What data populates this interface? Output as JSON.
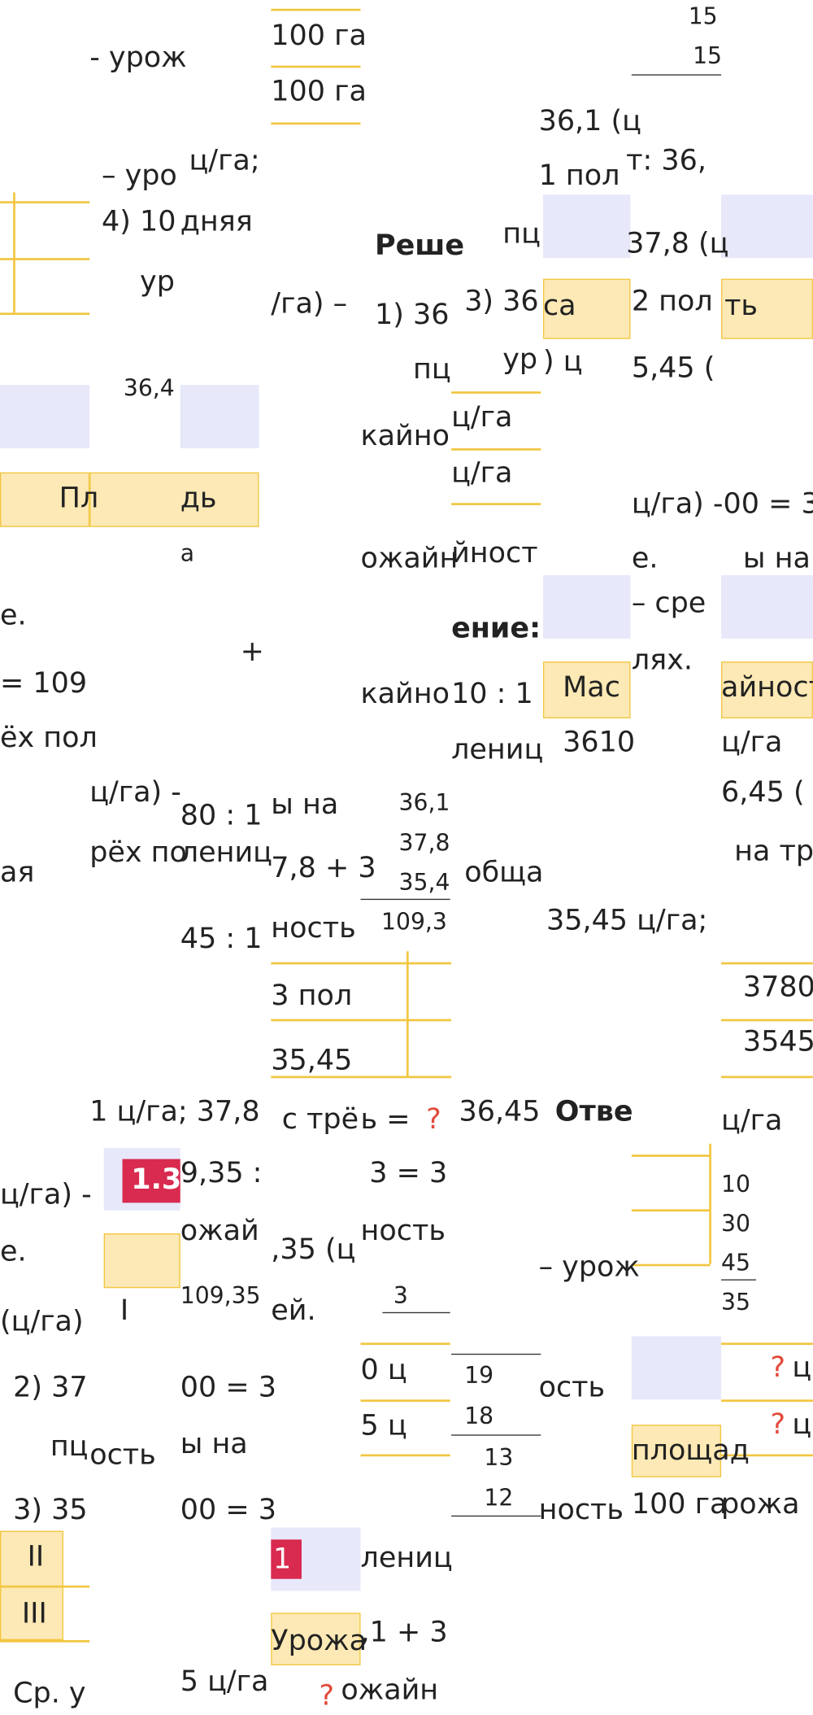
{
  "fragments": [
    "- урож",
    "100 га",
    "100 га",
    "15",
    "15",
    "36,1 (ц",
    "ц/га;",
    "– уро",
    "1 пол",
    "т: 36,",
    "4) 10",
    "дняя",
    "Реше",
    "пц",
    "37,8 (ц",
    "ур",
    "/га) –",
    "1) 36",
    "3) 36",
    "са",
    "2 пол",
    "ть",
    "ур",
    ") ц",
    "5,45 (",
    "пц",
    "36,4",
    "ц/га",
    "кайно",
    "ц/га",
    "Пл",
    "дь",
    "а",
    "ожайн",
    "йност",
    "ц/га) -00 = 3",
    "е.",
    "ы на",
    "е.",
    "ение:",
    "– сре",
    "+",
    "лях.",
    "= 109",
    "кайно",
    "10 : 1",
    "Мас",
    "айност",
    "ёх пол",
    "лениц",
    "3610",
    "ц/га",
    "ц/га) -",
    "80 : 1",
    "ы на",
    "36,1",
    "6,45 (",
    "рёх по",
    "ая",
    "лениц",
    "7,8 + 3",
    "37,8",
    "35,4",
    "обща",
    "на тр",
    "45 : 1",
    "ность",
    "109,3",
    "35,45 ц/га;",
    "3780",
    "3 пол",
    "3545",
    "35,45",
    "1 ц/га; 37,8",
    "с трё",
    "ь =",
    "?",
    "36,45",
    "Отве",
    "ц/га",
    "1.3",
    "9,35 :",
    "3 = 3",
    "ц/га) -",
    "10",
    "30",
    "45",
    "35",
    "ожай",
    ",35 (ц",
    "ность",
    "– урож",
    "е.",
    "109,35",
    "ей.",
    "3",
    "(ц/га)",
    "I",
    "2) 37",
    "00 = 3",
    "0 ц",
    "19",
    "ость",
    "?",
    "ц",
    "пц",
    "ость",
    "ы на",
    "5 ц",
    "18",
    "?",
    "ц",
    "13",
    "площад",
    "3) 35",
    "00 = 3",
    "12",
    "ность",
    "100 га",
    "рожа",
    "II",
    "1",
    "лениц",
    "III",
    "Урожа",
    ",1 + 3",
    "Ср. у",
    "5 ц/га",
    "?",
    "ожайн"
  ]
}
